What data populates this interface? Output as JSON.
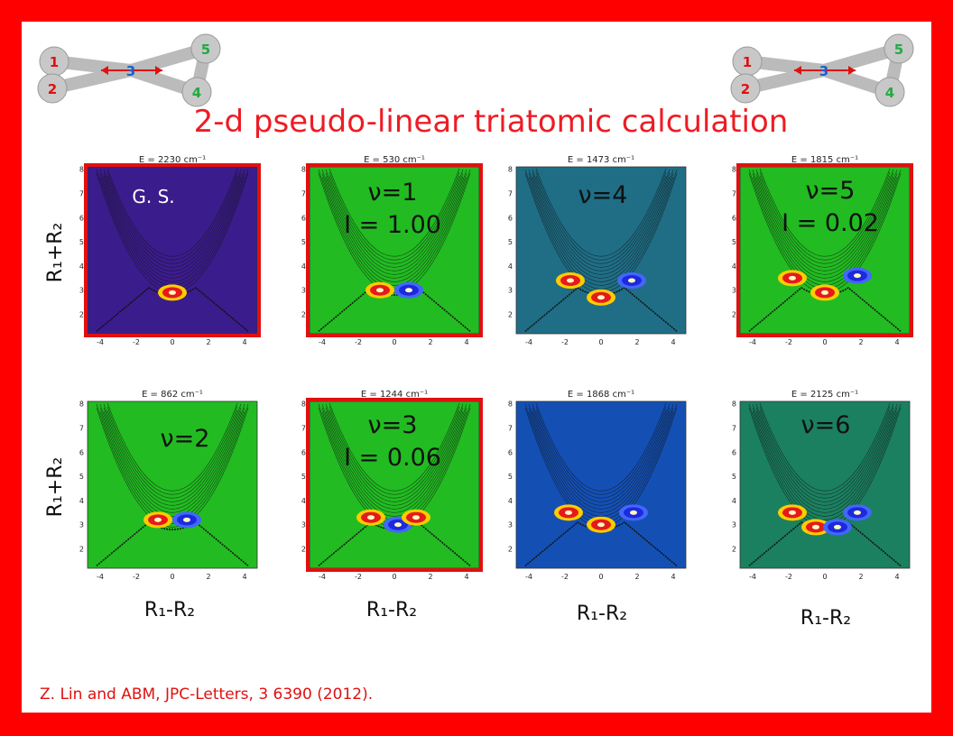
{
  "title": "2-d pseudo-linear triatomic calculation",
  "citation": "Z. Lin and ABM, JPC-Letters, 3 6390 (2012).",
  "atoms": [
    "1",
    "2",
    "3",
    "4",
    "5"
  ],
  "y_label": "R₁+R₂",
  "x_label": "R₁-R₂",
  "x_ticks": [
    "-4",
    "-2",
    "0",
    "2",
    "4"
  ],
  "y_ticks": [
    "2",
    "3",
    "4",
    "5",
    "6",
    "7",
    "8"
  ],
  "panels": [
    {
      "energy": "E = 2230 cm⁻¹",
      "state": "G. S."
    },
    {
      "energy": "E = 530 cm⁻¹",
      "state": "ν=1",
      "intensity": "I = 1.00"
    },
    {
      "energy": "E = 1473 cm⁻¹",
      "state": "ν=4"
    },
    {
      "energy": "E = 1815 cm⁻¹",
      "state": "ν=5",
      "intensity": "I = 0.02"
    },
    {
      "energy": "E = 862 cm⁻¹",
      "state": "ν=2"
    },
    {
      "energy": "E = 1244 cm⁻¹",
      "state": "ν=3",
      "intensity": "I = 0.06"
    },
    {
      "energy": "E = 1868 cm⁻¹"
    },
    {
      "energy": "E = 2125 cm⁻¹",
      "state": "ν=6"
    }
  ]
}
